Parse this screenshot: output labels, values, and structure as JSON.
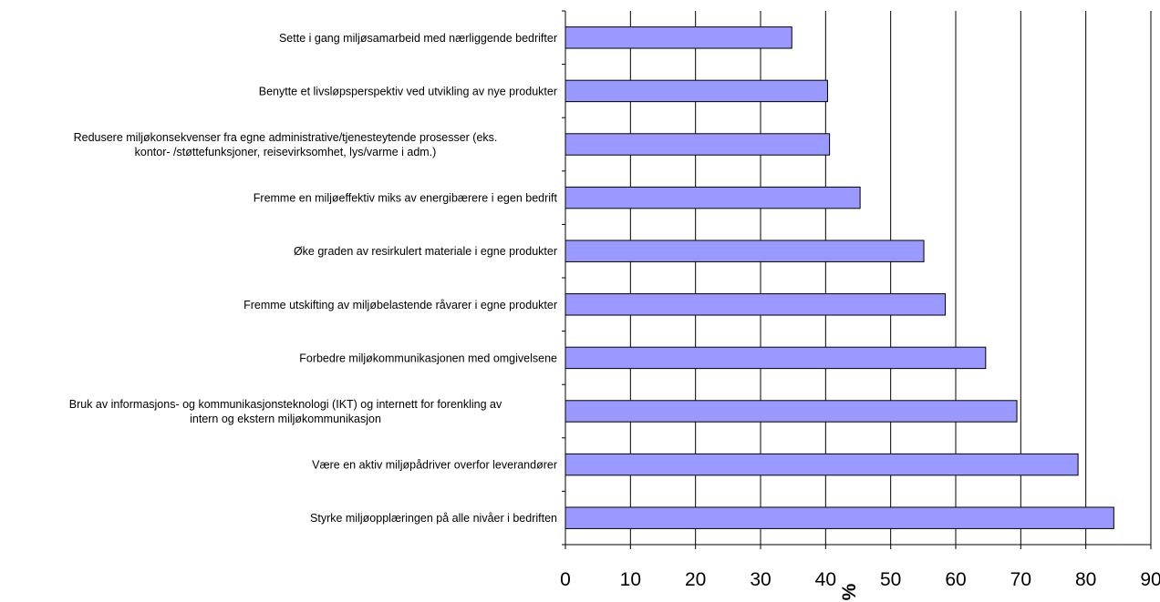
{
  "chart_data": {
    "type": "bar",
    "orientation": "horizontal",
    "categories": [
      [
        "Styrke miljøopplæringen på alle nivåer i bedriften"
      ],
      [
        "Være en aktiv miljøpådriver overfor leverandører"
      ],
      [
        "Bruk av informasjons- og kommunikasjonsteknologi (IKT) og internett for forenkling av",
        "intern og ekstern miljøkommunikasjon"
      ],
      [
        "Forbedre miljøkommunikasjonen med omgivelsene"
      ],
      [
        "Fremme utskifting av miljøbelastende råvarer i egne produkter"
      ],
      [
        "Øke graden av resirkulert materiale i egne produkter"
      ],
      [
        "Fremme en miljøeffektiv miks av energibærere i egen bedrift"
      ],
      [
        "Redusere miljøkonsekvenser fra egne administrative/tjenesteytende  prosesser (eks.",
        "kontor- /støttefunksjoner, reisevirksomhet, lys/varme i adm.)"
      ],
      [
        "Benytte et livsløpsperspektiv ved utvikling av nye produkter"
      ],
      [
        "Sette i gang miljøsamarbeid med nærliggende bedrifter"
      ]
    ],
    "values": [
      84.3,
      78.8,
      69.4,
      64.6,
      58.4,
      55.1,
      45.3,
      40.6,
      40.3,
      34.8
    ],
    "xlabel": "%",
    "ylabel": "",
    "title": "",
    "xlim": [
      0,
      90
    ],
    "xticks": [
      0,
      10,
      20,
      30,
      40,
      50,
      60,
      70,
      80,
      90
    ],
    "grid": "vertical",
    "legend": "none",
    "bar_color": "#9999ff",
    "bar_edge_color": "#000000"
  }
}
